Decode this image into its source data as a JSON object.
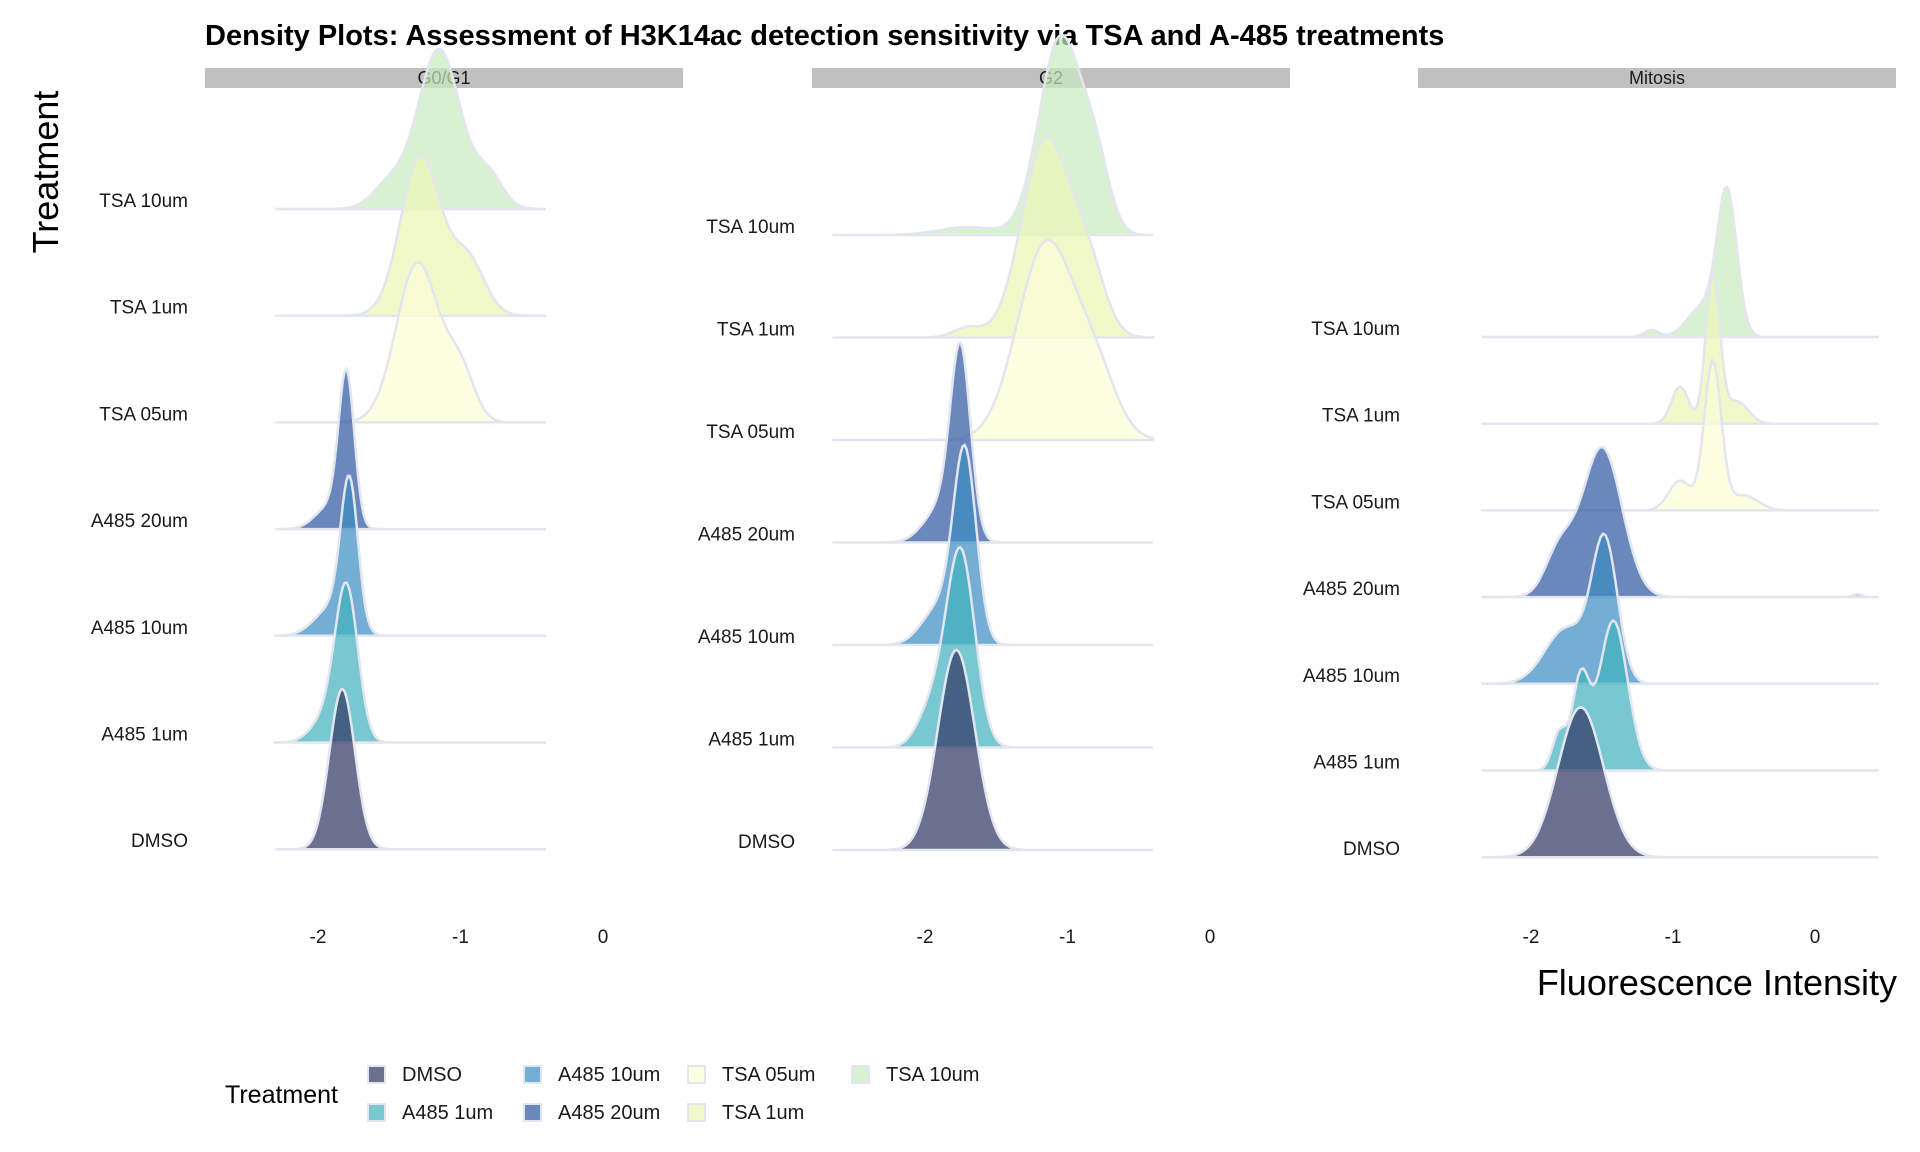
{
  "chart_data": {
    "type": "ridgeline-density",
    "title": "Density Plots: Assessment of H3K14ac detection sensitivity via TSA and A-485 treatments",
    "xlabel": "Fluorescence Intensity",
    "ylabel": "Treatment",
    "facets": [
      "G0/G1",
      "G2",
      "Mitosis"
    ],
    "categories": [
      "DMSO",
      "A485 1um",
      "A485 10um",
      "A485 20um",
      "TSA 05um",
      "TSA 1um",
      "TSA 10um"
    ],
    "x_ticks": [
      -2,
      -1,
      0
    ],
    "x_tick_labels": [
      "-2",
      "-1",
      "0"
    ],
    "xlim": [
      -2.3,
      0.4
    ],
    "legend": {
      "title": "Treatment",
      "position": "bottom",
      "entries": [
        "DMSO",
        "A485 1um",
        "A485 10um",
        "A485 20um",
        "TSA 05um",
        "TSA 1um",
        "TSA 10um"
      ]
    },
    "colors": {
      "DMSO": "#2d3361",
      "A485 1um": "#40b0be",
      "A485 10um": "#3b8cc2",
      "A485 20um": "#2c56a0",
      "TSA 05um": "#fbfdd5",
      "TSA 1um": "#ebf7b5",
      "TSA 10um": "#c8ebbd"
    },
    "grid": false,
    "series": [
      {
        "facet": "G0/G1",
        "ridges": [
          {
            "treatment": "DMSO",
            "x_range": [
              -2.3,
              -0.4
            ],
            "peaks": [
              {
                "mean": -1.83,
                "sd": 0.09,
                "w": 1
              }
            ]
          },
          {
            "treatment": "A485 1um",
            "x_range": [
              -2.3,
              -0.4
            ],
            "peaks": [
              {
                "mean": -1.8,
                "sd": 0.08,
                "w": 1
              },
              {
                "mean": -1.95,
                "sd": 0.1,
                "w": 0.15
              }
            ]
          },
          {
            "treatment": "A485 10um",
            "x_range": [
              -2.3,
              -0.4
            ],
            "peaks": [
              {
                "mean": -1.78,
                "sd": 0.06,
                "w": 1
              },
              {
                "mean": -1.9,
                "sd": 0.12,
                "w": 0.2
              }
            ]
          },
          {
            "treatment": "A485 20um",
            "x_range": [
              -2.3,
              -0.4
            ],
            "peaks": [
              {
                "mean": -1.8,
                "sd": 0.055,
                "w": 1
              },
              {
                "mean": -1.92,
                "sd": 0.1,
                "w": 0.15
              }
            ]
          },
          {
            "treatment": "TSA 05um",
            "x_range": [
              -2.3,
              -0.4
            ],
            "peaks": [
              {
                "mean": -1.3,
                "sd": 0.15,
                "w": 1
              },
              {
                "mean": -1.0,
                "sd": 0.1,
                "w": 0.3
              }
            ]
          },
          {
            "treatment": "TSA 1um",
            "x_range": [
              -2.3,
              -0.4
            ],
            "peaks": [
              {
                "mean": -1.28,
                "sd": 0.14,
                "w": 1
              },
              {
                "mean": -0.95,
                "sd": 0.12,
                "w": 0.35
              }
            ]
          },
          {
            "treatment": "TSA 10um",
            "x_range": [
              -2.3,
              -0.4
            ],
            "peaks": [
              {
                "mean": -1.15,
                "sd": 0.15,
                "w": 1
              },
              {
                "mean": -1.5,
                "sd": 0.12,
                "w": 0.15
              },
              {
                "mean": -0.8,
                "sd": 0.1,
                "w": 0.2
              }
            ]
          }
        ]
      },
      {
        "facet": "G2",
        "ridges": [
          {
            "treatment": "DMSO",
            "x_range": [
              -2.65,
              -0.4
            ],
            "peaks": [
              {
                "mean": -1.78,
                "sd": 0.13,
                "w": 1
              }
            ]
          },
          {
            "treatment": "A485 1um",
            "x_range": [
              -2.65,
              -0.4
            ],
            "peaks": [
              {
                "mean": -1.75,
                "sd": 0.1,
                "w": 1
              },
              {
                "mean": -1.95,
                "sd": 0.1,
                "w": 0.2
              }
            ]
          },
          {
            "treatment": "A485 10um",
            "x_range": [
              -2.65,
              -0.4
            ],
            "peaks": [
              {
                "mean": -1.72,
                "sd": 0.08,
                "w": 1
              },
              {
                "mean": -1.9,
                "sd": 0.12,
                "w": 0.2
              }
            ]
          },
          {
            "treatment": "A485 20um",
            "x_range": [
              -2.65,
              -0.4
            ],
            "peaks": [
              {
                "mean": -1.75,
                "sd": 0.07,
                "w": 1
              },
              {
                "mean": -1.88,
                "sd": 0.12,
                "w": 0.2
              }
            ]
          },
          {
            "treatment": "TSA 05um",
            "x_range": [
              -2.65,
              -0.4
            ],
            "peaks": [
              {
                "mean": -1.15,
                "sd": 0.2,
                "w": 1
              },
              {
                "mean": -0.8,
                "sd": 0.15,
                "w": 0.3
              }
            ]
          },
          {
            "treatment": "TSA 1um",
            "x_range": [
              -2.65,
              -0.4
            ],
            "peaks": [
              {
                "mean": -1.15,
                "sd": 0.17,
                "w": 1
              },
              {
                "mean": -0.85,
                "sd": 0.12,
                "w": 0.3
              },
              {
                "mean": -1.7,
                "sd": 0.1,
                "w": 0.05
              }
            ]
          },
          {
            "treatment": "TSA 10um",
            "x_range": [
              -2.65,
              -0.4
            ],
            "peaks": [
              {
                "mean": -1.05,
                "sd": 0.15,
                "w": 1
              },
              {
                "mean": -0.8,
                "sd": 0.1,
                "w": 0.3
              },
              {
                "mean": -1.7,
                "sd": 0.2,
                "w": 0.04
              }
            ]
          }
        ]
      },
      {
        "facet": "Mitosis",
        "ridges": [
          {
            "treatment": "DMSO",
            "x_range": [
              -2.35,
              0.45
            ],
            "peaks": [
              {
                "mean": -1.65,
                "sd": 0.16,
                "w": 1
              }
            ]
          },
          {
            "treatment": "A485 1um",
            "x_range": [
              -2.35,
              0.45
            ],
            "peaks": [
              {
                "mean": -1.42,
                "sd": 0.1,
                "w": 1
              },
              {
                "mean": -1.65,
                "sd": 0.06,
                "w": 0.6
              },
              {
                "mean": -1.8,
                "sd": 0.05,
                "w": 0.25
              }
            ]
          },
          {
            "treatment": "A485 10um",
            "x_range": [
              -2.35,
              0.45
            ],
            "peaks": [
              {
                "mean": -1.48,
                "sd": 0.09,
                "w": 1
              },
              {
                "mean": -1.75,
                "sd": 0.15,
                "w": 0.4
              }
            ]
          },
          {
            "treatment": "A485 20um",
            "x_range": [
              -2.35,
              0.45
            ],
            "peaks": [
              {
                "mean": -1.5,
                "sd": 0.14,
                "w": 1
              },
              {
                "mean": -1.8,
                "sd": 0.1,
                "w": 0.3
              },
              {
                "mean": 0.3,
                "sd": 0.03,
                "w": 0.02
              }
            ]
          },
          {
            "treatment": "TSA 05um",
            "x_range": [
              -2.35,
              0.45
            ],
            "peaks": [
              {
                "mean": -0.72,
                "sd": 0.06,
                "w": 1
              },
              {
                "mean": -0.95,
                "sd": 0.08,
                "w": 0.2
              },
              {
                "mean": -0.5,
                "sd": 0.1,
                "w": 0.1
              }
            ]
          },
          {
            "treatment": "TSA 1um",
            "x_range": [
              -2.35,
              0.45
            ],
            "peaks": [
              {
                "mean": -0.72,
                "sd": 0.05,
                "w": 1
              },
              {
                "mean": -0.95,
                "sd": 0.06,
                "w": 0.25
              },
              {
                "mean": -0.55,
                "sd": 0.08,
                "w": 0.15
              }
            ]
          },
          {
            "treatment": "TSA 10um",
            "x_range": [
              -2.35,
              0.45
            ],
            "peaks": [
              {
                "mean": -0.62,
                "sd": 0.07,
                "w": 1
              },
              {
                "mean": -0.8,
                "sd": 0.1,
                "w": 0.2
              },
              {
                "mean": -1.15,
                "sd": 0.05,
                "w": 0.05
              }
            ]
          }
        ]
      }
    ]
  }
}
